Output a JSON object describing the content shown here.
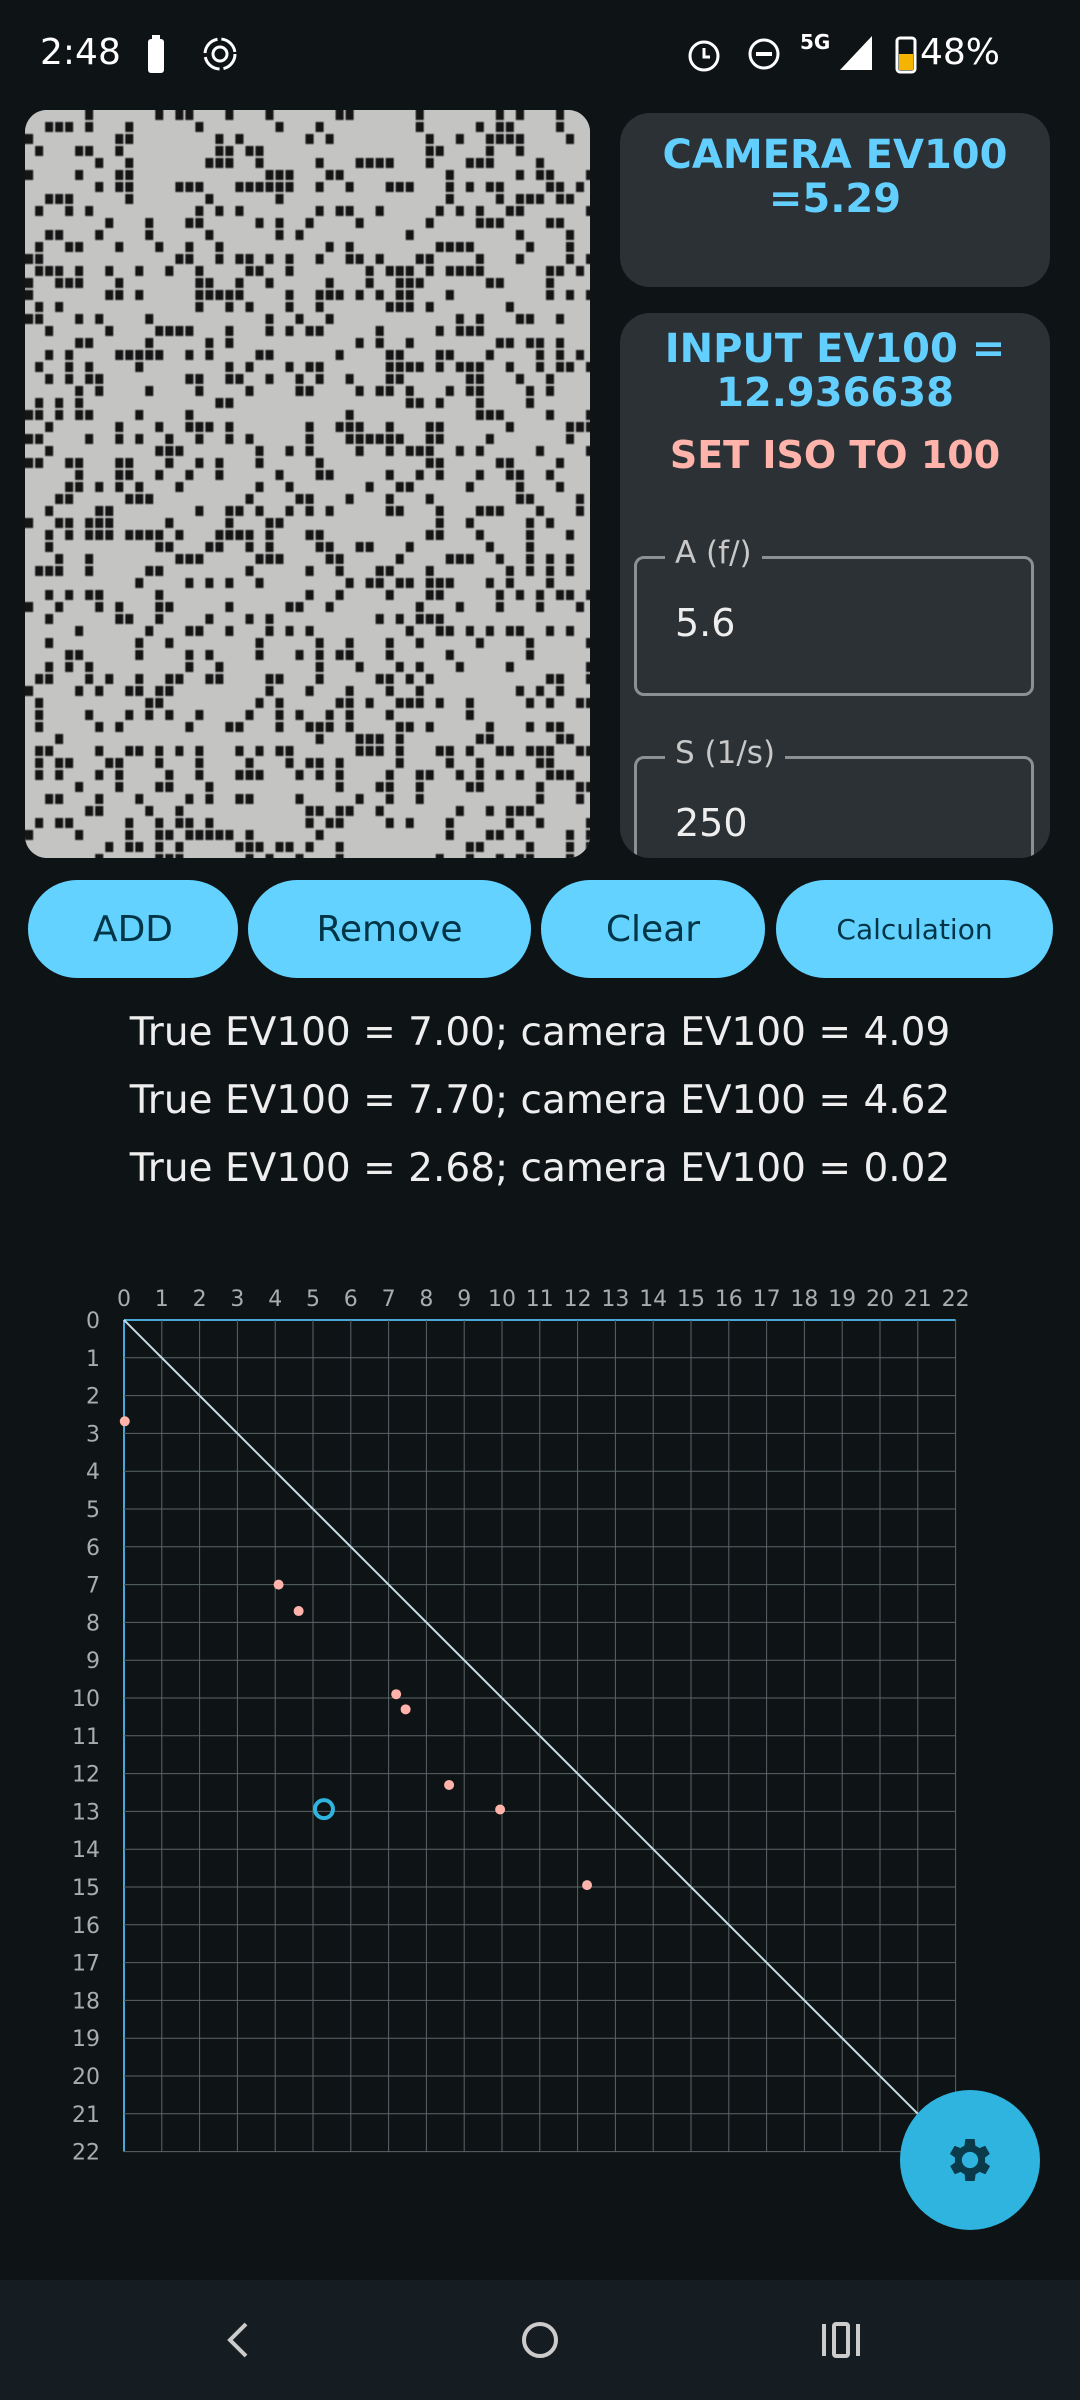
{
  "status_bar": {
    "time": "2:48",
    "network": "5G",
    "battery": "48%",
    "icons": [
      "battery-icon",
      "screen-record-icon",
      "alarm-icon",
      "do-not-disturb-icon",
      "signal-icon",
      "battery-charging-icon"
    ]
  },
  "camera_card": {
    "line1": "CAMERA EV100",
    "line2": "=5.29"
  },
  "input_card": {
    "line1": "INPUT EV100 =",
    "line2": "12.936638",
    "iso_note": "SET ISO TO 100",
    "aperture": {
      "label": "A (f/)",
      "value": "5.6"
    },
    "shutter": {
      "label": "S (1/s)",
      "value": "250"
    }
  },
  "buttons": {
    "add": "ADD",
    "remove": "Remove",
    "clear": "Clear",
    "calculation": "Calculation"
  },
  "results": [
    "True EV100 = 7.00; camera EV100 = 4.09",
    "True EV100 = 7.70; camera EV100 = 4.62",
    "True EV100 = 2.68; camera EV100 = 0.02"
  ],
  "colors": {
    "accent": "#64d2ff",
    "point": "#ffb3aa",
    "current": "#2fb4e0",
    "background": "#0e1416",
    "card": "#2b3134"
  },
  "chart_data": {
    "type": "scatter",
    "xlim": [
      0,
      22
    ],
    "ylim": [
      0,
      22
    ],
    "x_axis_position": "top",
    "y_axis_inverted": true,
    "grid": true,
    "x_ticks": [
      "0",
      "1",
      "2",
      "3",
      "4",
      "5",
      "6",
      "7",
      "8",
      "9",
      "10",
      "11",
      "12",
      "13",
      "14",
      "15",
      "16",
      "17",
      "18",
      "19",
      "20",
      "21",
      "22"
    ],
    "y_ticks": [
      "0",
      "1",
      "2",
      "3",
      "4",
      "5",
      "6",
      "7",
      "8",
      "9",
      "10",
      "11",
      "12",
      "13",
      "14",
      "15",
      "16",
      "17",
      "18",
      "19",
      "20",
      "21",
      "22"
    ],
    "reference_line": {
      "from": [
        0,
        0
      ],
      "to": [
        22,
        22
      ]
    },
    "points": [
      {
        "x": 0.02,
        "y": 2.68
      },
      {
        "x": 4.09,
        "y": 7.0
      },
      {
        "x": 4.62,
        "y": 7.7
      },
      {
        "x": 7.2,
        "y": 9.9
      },
      {
        "x": 7.45,
        "y": 10.3
      },
      {
        "x": 8.6,
        "y": 12.3
      },
      {
        "x": 9.95,
        "y": 12.95
      },
      {
        "x": 12.25,
        "y": 14.95
      }
    ],
    "current_point": {
      "x": 5.29,
      "y": 12.94
    }
  },
  "fab": {
    "icon": "gear-icon"
  },
  "nav": {
    "icons": [
      "back-icon",
      "home-icon",
      "recents-icon"
    ]
  }
}
